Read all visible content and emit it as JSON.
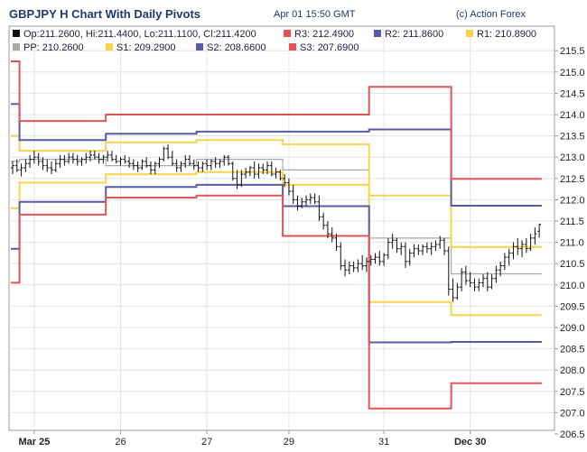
{
  "header": {
    "title": "GBPJPY H Chart With Daily Pivots",
    "timestamp": "Apr 01 15:50 GMT",
    "credit": "(c) Action Forex"
  },
  "chart_data": {
    "type": "line",
    "title": "GBPJPY H Chart With Daily Pivots",
    "xlabel": "",
    "ylabel": "",
    "ylim": [
      206.5,
      215.7
    ],
    "xlim": [
      0,
      123
    ],
    "grid": true,
    "legend_position": "top-left",
    "y_ticks": [
      "206.5",
      "207.0",
      "207.5",
      "208.0",
      "208.5",
      "209.0",
      "209.5",
      "210.0",
      "210.5",
      "211.0",
      "211.5",
      "212.0",
      "212.5",
      "213.0",
      "213.5",
      "214.0",
      "214.5",
      "215.0",
      "215.5"
    ],
    "x_ticks": [
      {
        "label": "Mar 25",
        "x": 5,
        "bold": true
      },
      {
        "label": "26",
        "x": 25,
        "bold": false
      },
      {
        "label": "27",
        "x": 45,
        "bold": false
      },
      {
        "label": "29",
        "x": 64,
        "bold": false
      },
      {
        "label": "31",
        "x": 86,
        "bold": false
      },
      {
        "label": "Dec 30",
        "x": 106,
        "bold": true
      }
    ],
    "legend": [
      {
        "key": "ohlc",
        "text": "Op:211.2600, Hi:211.4400, Lo:211.1100, Cl:211.4200",
        "color": "#111111"
      },
      {
        "key": "r3",
        "text": "R3: 212.4900",
        "color": "#e05555"
      },
      {
        "key": "r2",
        "text": "R2: 211.8600",
        "color": "#5a5aa8"
      },
      {
        "key": "r1",
        "text": "R1: 210.8900",
        "color": "#f7d44c"
      },
      {
        "key": "pp",
        "text": "PP: 210.2600",
        "color": "#aaaaaa"
      },
      {
        "key": "s1",
        "text": "S1: 209.2900",
        "color": "#f7d44c"
      },
      {
        "key": "s2",
        "text": "S2: 208.6600",
        "color": "#5a5aa8"
      },
      {
        "key": "s3",
        "text": "S3: 207.6900",
        "color": "#e05555"
      }
    ],
    "pivot_days": [
      {
        "x": [
          0,
          2
        ],
        "R3": 215.25,
        "R2": 214.25,
        "R1": 213.5,
        "PP": 212.9,
        "S1": 211.8,
        "S2": 210.85,
        "S3": 210.05
      },
      {
        "x": [
          2,
          22
        ],
        "R3": 213.85,
        "R2": 213.4,
        "R1": 213.15,
        "PP": 212.95,
        "S1": 212.4,
        "S2": 211.95,
        "S3": 211.65
      },
      {
        "x": [
          22,
          43
        ],
        "R3": 214.0,
        "R2": 213.55,
        "R1": 213.35,
        "PP": 212.8,
        "S1": 212.6,
        "S2": 212.3,
        "S3": 212.05
      },
      {
        "x": [
          43,
          63
        ],
        "R3": 214.0,
        "R2": 213.6,
        "R1": 213.4,
        "PP": 212.95,
        "S1": 212.65,
        "S2": 212.35,
        "S3": 212.1
      },
      {
        "x": [
          63,
          83
        ],
        "R3": 214.0,
        "R2": 213.6,
        "R1": 213.3,
        "PP": 212.7,
        "S1": 212.35,
        "S2": 211.85,
        "S3": 211.15
      },
      {
        "x": [
          83,
          102
        ],
        "R3": 214.65,
        "R2": 213.65,
        "R1": 212.1,
        "PP": 211.1,
        "S1": 209.6,
        "S2": 208.65,
        "S3": 207.1
      },
      {
        "x": [
          102,
          123
        ],
        "R3": 212.49,
        "R2": 211.86,
        "R1": 210.89,
        "PP": 210.26,
        "S1": 209.29,
        "S2": 208.66,
        "S3": 207.69
      }
    ],
    "pivot_colors": {
      "R3": "#e05555",
      "R2": "#5a5aa8",
      "R1": "#f7d44c",
      "PP": "#aaaaaa",
      "S1": "#f7d44c",
      "S2": "#5a5aa8",
      "S3": "#e05555"
    },
    "candles": [
      {
        "x": 0,
        "o": 212.75,
        "h": 212.9,
        "l": 212.6,
        "c": 212.8
      },
      {
        "x": 1,
        "o": 212.8,
        "h": 212.95,
        "l": 212.65,
        "c": 212.7
      },
      {
        "x": 2,
        "o": 212.7,
        "h": 212.85,
        "l": 212.55,
        "c": 212.75
      },
      {
        "x": 3,
        "o": 212.75,
        "h": 212.95,
        "l": 212.65,
        "c": 212.85
      },
      {
        "x": 4,
        "o": 212.85,
        "h": 213.05,
        "l": 212.75,
        "c": 212.95
      },
      {
        "x": 5,
        "o": 212.95,
        "h": 213.15,
        "l": 212.85,
        "c": 213.0
      },
      {
        "x": 6,
        "o": 213.0,
        "h": 213.1,
        "l": 212.8,
        "c": 212.9
      },
      {
        "x": 7,
        "o": 212.9,
        "h": 213.0,
        "l": 212.7,
        "c": 212.8
      },
      {
        "x": 8,
        "o": 212.8,
        "h": 212.95,
        "l": 212.65,
        "c": 212.75
      },
      {
        "x": 9,
        "o": 212.75,
        "h": 212.9,
        "l": 212.6,
        "c": 212.7
      },
      {
        "x": 10,
        "o": 212.7,
        "h": 212.95,
        "l": 212.65,
        "c": 212.85
      },
      {
        "x": 11,
        "o": 212.85,
        "h": 213.05,
        "l": 212.75,
        "c": 212.95
      },
      {
        "x": 12,
        "o": 212.95,
        "h": 213.05,
        "l": 212.8,
        "c": 212.9
      },
      {
        "x": 13,
        "o": 212.9,
        "h": 213.1,
        "l": 212.85,
        "c": 213.0
      },
      {
        "x": 14,
        "o": 213.0,
        "h": 213.1,
        "l": 212.85,
        "c": 212.95
      },
      {
        "x": 15,
        "o": 212.95,
        "h": 213.05,
        "l": 212.8,
        "c": 212.9
      },
      {
        "x": 16,
        "o": 212.9,
        "h": 213.0,
        "l": 212.8,
        "c": 212.95
      },
      {
        "x": 17,
        "o": 212.95,
        "h": 213.1,
        "l": 212.85,
        "c": 213.0
      },
      {
        "x": 18,
        "o": 213.0,
        "h": 213.15,
        "l": 212.9,
        "c": 213.05
      },
      {
        "x": 19,
        "o": 213.05,
        "h": 213.15,
        "l": 212.95,
        "c": 213.0
      },
      {
        "x": 20,
        "o": 213.0,
        "h": 213.1,
        "l": 212.85,
        "c": 212.95
      },
      {
        "x": 21,
        "o": 212.95,
        "h": 213.05,
        "l": 212.85,
        "c": 213.0
      },
      {
        "x": 22,
        "o": 213.0,
        "h": 213.15,
        "l": 212.9,
        "c": 213.05
      },
      {
        "x": 23,
        "o": 213.05,
        "h": 213.15,
        "l": 212.9,
        "c": 212.95
      },
      {
        "x": 24,
        "o": 212.95,
        "h": 213.05,
        "l": 212.85,
        "c": 212.9
      },
      {
        "x": 25,
        "o": 212.9,
        "h": 213.0,
        "l": 212.8,
        "c": 212.95
      },
      {
        "x": 26,
        "o": 212.95,
        "h": 213.05,
        "l": 212.85,
        "c": 212.9
      },
      {
        "x": 27,
        "o": 212.9,
        "h": 213.0,
        "l": 212.75,
        "c": 212.85
      },
      {
        "x": 28,
        "o": 212.85,
        "h": 212.95,
        "l": 212.7,
        "c": 212.8
      },
      {
        "x": 29,
        "o": 212.8,
        "h": 212.9,
        "l": 212.65,
        "c": 212.75
      },
      {
        "x": 30,
        "o": 212.75,
        "h": 212.95,
        "l": 212.7,
        "c": 212.9
      },
      {
        "x": 31,
        "o": 212.9,
        "h": 213.0,
        "l": 212.75,
        "c": 212.8
      },
      {
        "x": 32,
        "o": 212.8,
        "h": 212.9,
        "l": 212.6,
        "c": 212.7
      },
      {
        "x": 33,
        "o": 212.7,
        "h": 212.9,
        "l": 212.6,
        "c": 212.85
      },
      {
        "x": 34,
        "o": 212.85,
        "h": 213.0,
        "l": 212.75,
        "c": 212.95
      },
      {
        "x": 35,
        "o": 212.95,
        "h": 213.25,
        "l": 212.9,
        "c": 213.2
      },
      {
        "x": 36,
        "o": 213.2,
        "h": 213.3,
        "l": 212.95,
        "c": 213.0
      },
      {
        "x": 37,
        "o": 213.0,
        "h": 213.15,
        "l": 212.8,
        "c": 212.85
      },
      {
        "x": 38,
        "o": 212.85,
        "h": 212.95,
        "l": 212.65,
        "c": 212.75
      },
      {
        "x": 39,
        "o": 212.75,
        "h": 212.9,
        "l": 212.65,
        "c": 212.85
      },
      {
        "x": 40,
        "o": 212.85,
        "h": 213.05,
        "l": 212.75,
        "c": 212.95
      },
      {
        "x": 41,
        "o": 212.95,
        "h": 213.05,
        "l": 212.8,
        "c": 212.85
      },
      {
        "x": 42,
        "o": 212.85,
        "h": 212.95,
        "l": 212.7,
        "c": 212.8
      },
      {
        "x": 43,
        "o": 212.8,
        "h": 212.9,
        "l": 212.65,
        "c": 212.75
      },
      {
        "x": 44,
        "o": 212.75,
        "h": 212.9,
        "l": 212.65,
        "c": 212.85
      },
      {
        "x": 45,
        "o": 212.85,
        "h": 212.95,
        "l": 212.7,
        "c": 212.8
      },
      {
        "x": 46,
        "o": 212.8,
        "h": 212.95,
        "l": 212.7,
        "c": 212.9
      },
      {
        "x": 47,
        "o": 212.9,
        "h": 213.0,
        "l": 212.75,
        "c": 212.85
      },
      {
        "x": 48,
        "o": 212.85,
        "h": 212.95,
        "l": 212.75,
        "c": 212.9
      },
      {
        "x": 49,
        "o": 212.9,
        "h": 213.05,
        "l": 212.8,
        "c": 213.0
      },
      {
        "x": 50,
        "o": 213.0,
        "h": 213.05,
        "l": 212.8,
        "c": 212.85
      },
      {
        "x": 51,
        "o": 212.85,
        "h": 212.9,
        "l": 212.45,
        "c": 212.5
      },
      {
        "x": 52,
        "o": 212.5,
        "h": 212.7,
        "l": 212.25,
        "c": 212.35
      },
      {
        "x": 53,
        "o": 212.35,
        "h": 212.7,
        "l": 212.3,
        "c": 212.6
      },
      {
        "x": 54,
        "o": 212.6,
        "h": 212.75,
        "l": 212.5,
        "c": 212.65
      },
      {
        "x": 55,
        "o": 212.65,
        "h": 212.8,
        "l": 212.55,
        "c": 212.75
      },
      {
        "x": 56,
        "o": 212.75,
        "h": 212.9,
        "l": 212.5,
        "c": 212.6
      },
      {
        "x": 57,
        "o": 212.6,
        "h": 212.85,
        "l": 212.5,
        "c": 212.75
      },
      {
        "x": 58,
        "o": 212.75,
        "h": 212.85,
        "l": 212.6,
        "c": 212.7
      },
      {
        "x": 59,
        "o": 212.7,
        "h": 212.9,
        "l": 212.6,
        "c": 212.8
      },
      {
        "x": 60,
        "o": 212.8,
        "h": 212.9,
        "l": 212.55,
        "c": 212.6
      },
      {
        "x": 61,
        "o": 212.6,
        "h": 212.75,
        "l": 212.5,
        "c": 212.65
      },
      {
        "x": 62,
        "o": 212.65,
        "h": 212.7,
        "l": 212.45,
        "c": 212.5
      },
      {
        "x": 63,
        "o": 212.5,
        "h": 212.6,
        "l": 212.3,
        "c": 212.4
      },
      {
        "x": 64,
        "o": 212.4,
        "h": 212.5,
        "l": 212.1,
        "c": 212.2
      },
      {
        "x": 65,
        "o": 212.2,
        "h": 212.35,
        "l": 211.9,
        "c": 212.0
      },
      {
        "x": 66,
        "o": 212.0,
        "h": 212.1,
        "l": 211.75,
        "c": 211.85
      },
      {
        "x": 67,
        "o": 211.85,
        "h": 212.05,
        "l": 211.8,
        "c": 211.95
      },
      {
        "x": 68,
        "o": 211.95,
        "h": 212.1,
        "l": 211.85,
        "c": 212.0
      },
      {
        "x": 69,
        "o": 212.0,
        "h": 212.15,
        "l": 211.9,
        "c": 212.05
      },
      {
        "x": 70,
        "o": 212.05,
        "h": 212.15,
        "l": 211.9,
        "c": 211.95
      },
      {
        "x": 71,
        "o": 211.95,
        "h": 212.1,
        "l": 211.5,
        "c": 211.6
      },
      {
        "x": 72,
        "o": 211.6,
        "h": 211.7,
        "l": 211.3,
        "c": 211.4
      },
      {
        "x": 73,
        "o": 211.4,
        "h": 211.5,
        "l": 211.1,
        "c": 211.2
      },
      {
        "x": 74,
        "o": 211.2,
        "h": 211.35,
        "l": 211.0,
        "c": 211.1
      },
      {
        "x": 75,
        "o": 211.1,
        "h": 211.2,
        "l": 210.8,
        "c": 210.9
      },
      {
        "x": 76,
        "o": 210.9,
        "h": 211.0,
        "l": 210.35,
        "c": 210.45
      },
      {
        "x": 77,
        "o": 210.45,
        "h": 210.6,
        "l": 210.2,
        "c": 210.35
      },
      {
        "x": 78,
        "o": 210.35,
        "h": 210.55,
        "l": 210.25,
        "c": 210.45
      },
      {
        "x": 79,
        "o": 210.45,
        "h": 210.55,
        "l": 210.3,
        "c": 210.4
      },
      {
        "x": 80,
        "o": 210.4,
        "h": 210.6,
        "l": 210.3,
        "c": 210.5
      },
      {
        "x": 81,
        "o": 210.5,
        "h": 210.7,
        "l": 210.35,
        "c": 210.45
      },
      {
        "x": 82,
        "o": 210.45,
        "h": 210.65,
        "l": 210.3,
        "c": 210.55
      },
      {
        "x": 83,
        "o": 210.55,
        "h": 210.7,
        "l": 210.45,
        "c": 210.6
      },
      {
        "x": 84,
        "o": 210.6,
        "h": 210.75,
        "l": 210.5,
        "c": 210.65
      },
      {
        "x": 85,
        "o": 210.65,
        "h": 210.8,
        "l": 210.45,
        "c": 210.55
      },
      {
        "x": 86,
        "o": 210.55,
        "h": 210.75,
        "l": 210.45,
        "c": 210.7
      },
      {
        "x": 87,
        "o": 210.7,
        "h": 211.1,
        "l": 210.6,
        "c": 211.0
      },
      {
        "x": 88,
        "o": 211.0,
        "h": 211.2,
        "l": 210.85,
        "c": 211.05
      },
      {
        "x": 89,
        "o": 211.05,
        "h": 211.1,
        "l": 210.75,
        "c": 210.85
      },
      {
        "x": 90,
        "o": 210.85,
        "h": 211.0,
        "l": 210.7,
        "c": 210.9
      },
      {
        "x": 91,
        "o": 210.9,
        "h": 211.0,
        "l": 210.4,
        "c": 210.55
      },
      {
        "x": 92,
        "o": 210.55,
        "h": 210.85,
        "l": 210.45,
        "c": 210.75
      },
      {
        "x": 93,
        "o": 210.75,
        "h": 210.95,
        "l": 210.65,
        "c": 210.85
      },
      {
        "x": 94,
        "o": 210.85,
        "h": 210.95,
        "l": 210.7,
        "c": 210.8
      },
      {
        "x": 95,
        "o": 210.8,
        "h": 210.95,
        "l": 210.7,
        "c": 210.9
      },
      {
        "x": 96,
        "o": 210.9,
        "h": 211.0,
        "l": 210.75,
        "c": 210.85
      },
      {
        "x": 97,
        "o": 210.85,
        "h": 211.0,
        "l": 210.7,
        "c": 210.9
      },
      {
        "x": 98,
        "o": 210.9,
        "h": 211.05,
        "l": 210.8,
        "c": 210.95
      },
      {
        "x": 99,
        "o": 210.95,
        "h": 211.15,
        "l": 210.85,
        "c": 211.05
      },
      {
        "x": 100,
        "o": 211.05,
        "h": 211.1,
        "l": 210.7,
        "c": 210.8
      },
      {
        "x": 101,
        "o": 210.8,
        "h": 210.9,
        "l": 209.75,
        "c": 209.9
      },
      {
        "x": 102,
        "o": 209.9,
        "h": 210.15,
        "l": 209.6,
        "c": 209.7
      },
      {
        "x": 103,
        "o": 209.7,
        "h": 210.05,
        "l": 209.65,
        "c": 209.95
      },
      {
        "x": 104,
        "o": 209.95,
        "h": 210.4,
        "l": 209.85,
        "c": 210.3
      },
      {
        "x": 105,
        "o": 210.3,
        "h": 210.45,
        "l": 210.0,
        "c": 210.1
      },
      {
        "x": 106,
        "o": 210.1,
        "h": 210.3,
        "l": 209.95,
        "c": 210.05
      },
      {
        "x": 107,
        "o": 210.05,
        "h": 210.15,
        "l": 209.85,
        "c": 209.95
      },
      {
        "x": 108,
        "o": 209.95,
        "h": 210.15,
        "l": 209.85,
        "c": 210.05
      },
      {
        "x": 109,
        "o": 210.05,
        "h": 210.25,
        "l": 209.95,
        "c": 210.15
      },
      {
        "x": 110,
        "o": 210.15,
        "h": 210.3,
        "l": 209.85,
        "c": 209.95
      },
      {
        "x": 111,
        "o": 209.95,
        "h": 210.25,
        "l": 209.9,
        "c": 210.15
      },
      {
        "x": 112,
        "o": 210.15,
        "h": 210.45,
        "l": 210.05,
        "c": 210.35
      },
      {
        "x": 113,
        "o": 210.35,
        "h": 210.55,
        "l": 210.2,
        "c": 210.45
      },
      {
        "x": 114,
        "o": 210.45,
        "h": 210.75,
        "l": 210.35,
        "c": 210.65
      },
      {
        "x": 115,
        "o": 210.65,
        "h": 210.85,
        "l": 210.45,
        "c": 210.75
      },
      {
        "x": 116,
        "o": 210.75,
        "h": 211.0,
        "l": 210.6,
        "c": 210.9
      },
      {
        "x": 117,
        "o": 210.9,
        "h": 211.1,
        "l": 210.7,
        "c": 210.85
      },
      {
        "x": 118,
        "o": 210.85,
        "h": 211.05,
        "l": 210.65,
        "c": 210.95
      },
      {
        "x": 119,
        "o": 210.95,
        "h": 211.1,
        "l": 210.75,
        "c": 210.85
      },
      {
        "x": 120,
        "o": 210.85,
        "h": 211.2,
        "l": 210.8,
        "c": 211.1
      },
      {
        "x": 121,
        "o": 211.1,
        "h": 211.35,
        "l": 210.95,
        "c": 211.2
      },
      {
        "x": 122,
        "o": 211.26,
        "h": 211.44,
        "l": 211.11,
        "c": 211.42
      }
    ]
  }
}
